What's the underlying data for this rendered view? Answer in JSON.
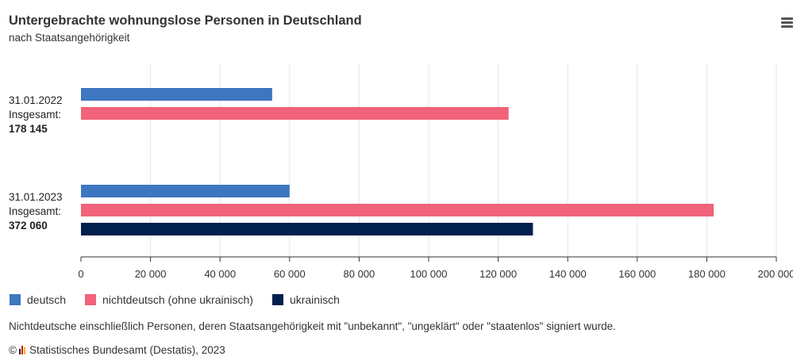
{
  "header": {
    "title": "Untergebrachte wohnungslose Personen in Deutschland",
    "subtitle": "nach Staatsangehörigkeit",
    "menu_icon": "hamburger-menu-icon"
  },
  "chart_data": {
    "type": "bar",
    "orientation": "horizontal",
    "title": "Untergebrachte wohnungslose Personen in Deutschland",
    "subtitle": "nach Staatsangehörigkeit",
    "categories": [
      {
        "date": "31.01.2022",
        "label": "Insgesamt:",
        "total": "178 145"
      },
      {
        "date": "31.01.2023",
        "label": "Insgesamt:",
        "total": "372 060"
      }
    ],
    "series": [
      {
        "name": "deutsch",
        "color": "#3d77bf",
        "values": [
          55000,
          60000
        ]
      },
      {
        "name": "nichtdeutsch (ohne ukrainisch)",
        "color": "#f0637a",
        "values": [
          123000,
          182000
        ]
      },
      {
        "name": "ukrainisch",
        "color": "#00214d",
        "values": [
          null,
          130000
        ]
      }
    ],
    "xlim": [
      0,
      200000
    ],
    "xticks": [
      "0",
      "20 000",
      "40 000",
      "60 000",
      "80 000",
      "100 000",
      "120 000",
      "140 000",
      "160 000",
      "180 000",
      "200 000"
    ],
    "grid": true,
    "legend_position": "bottom-left"
  },
  "footnote": "Nichtdeutsche einschließlich Personen, deren Staatsangehörigkeit mit \"unbekannt\", \"ungeklärt\" oder \"staatenlos\" signiert wurde.",
  "source": {
    "copyright": "©",
    "text": "Statistisches Bundesamt (Destatis), 2023",
    "logo_colors": [
      "#222222",
      "#e30613",
      "#f5b800"
    ]
  }
}
